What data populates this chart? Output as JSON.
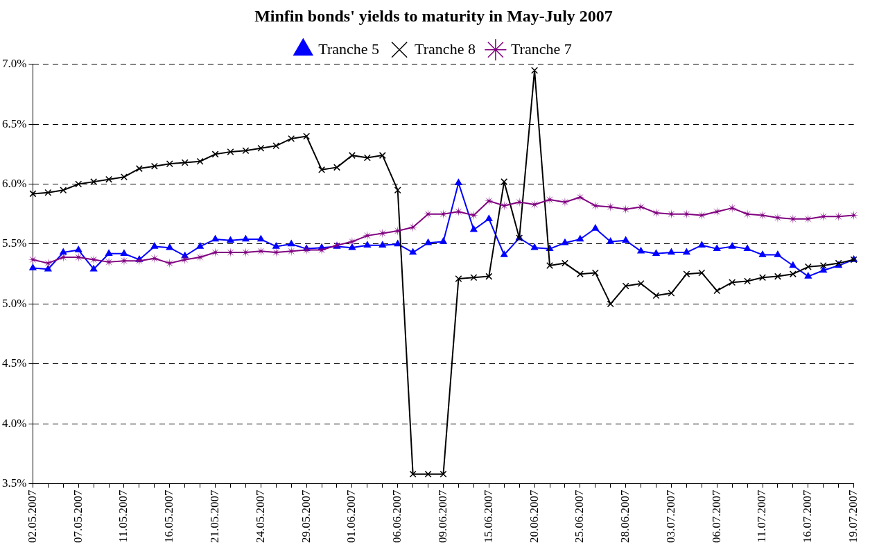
{
  "chart_data": {
    "type": "line",
    "title": "Minfin bonds' yields to maturity in May-July 2007",
    "categories": [
      "02.05.2007",
      null,
      null,
      "07.05.2007",
      null,
      null,
      "11.05.2007",
      null,
      null,
      "16.05.2007",
      null,
      null,
      "21.05.2007",
      null,
      null,
      "24.05.2007",
      null,
      null,
      "29.05.2007",
      null,
      null,
      "01.06.2007",
      null,
      null,
      "06.06.2007",
      null,
      null,
      "09.06.2007",
      null,
      null,
      "15.06.2007",
      null,
      null,
      "20.06.2007",
      null,
      null,
      "25.06.2007",
      null,
      null,
      "28.06.2007",
      null,
      null,
      "03.07.2007",
      null,
      null,
      "06.07.2007",
      null,
      null,
      "11.07.2007",
      null,
      null,
      "16.07.2007",
      null,
      null,
      "19.07.2007"
    ],
    "series": [
      {
        "name": "Tranche 5",
        "color": "#0000ff",
        "marker": "triangle",
        "values": [
          5.3,
          5.29,
          5.43,
          5.45,
          5.29,
          5.42,
          5.42,
          5.37,
          5.48,
          5.47,
          5.4,
          5.48,
          5.54,
          5.53,
          5.54,
          5.54,
          5.48,
          5.5,
          5.46,
          5.47,
          5.48,
          5.47,
          5.49,
          5.49,
          5.5,
          5.43,
          5.51,
          5.52,
          6.01,
          5.62,
          5.71,
          5.41,
          5.55,
          5.47,
          5.46,
          5.51,
          5.54,
          5.63,
          5.52,
          5.53,
          5.44,
          5.42,
          5.43,
          5.43,
          5.49,
          5.46,
          5.48,
          5.46,
          5.41,
          5.41,
          5.32,
          5.23,
          5.28,
          5.32,
          5.37
        ]
      },
      {
        "name": "Tranche 8",
        "color": "#000000",
        "marker": "cross",
        "values": [
          5.92,
          5.93,
          5.95,
          6.0,
          6.02,
          6.04,
          6.06,
          6.13,
          6.15,
          6.17,
          6.18,
          6.19,
          6.25,
          6.27,
          6.28,
          6.3,
          6.32,
          6.38,
          6.4,
          6.12,
          6.14,
          6.24,
          6.22,
          6.24,
          5.95,
          3.58,
          3.58,
          3.58,
          5.21,
          5.22,
          5.23,
          6.02,
          5.55,
          6.95,
          5.32,
          5.34,
          5.25,
          5.26,
          5.0,
          5.15,
          5.17,
          5.07,
          5.09,
          5.25,
          5.26,
          5.11,
          5.18,
          5.19,
          5.22,
          5.23,
          5.25,
          5.31,
          5.32,
          5.34,
          5.37
        ]
      },
      {
        "name": "Tranche 7",
        "color": "#800080",
        "marker": "star",
        "values": [
          5.37,
          5.34,
          5.39,
          5.39,
          5.37,
          5.35,
          5.36,
          5.36,
          5.38,
          5.34,
          5.37,
          5.39,
          5.43,
          5.43,
          5.43,
          5.44,
          5.43,
          5.44,
          5.45,
          5.45,
          5.49,
          5.52,
          5.57,
          5.59,
          5.61,
          5.64,
          5.75,
          5.75,
          5.77,
          5.74,
          5.86,
          5.82,
          5.85,
          5.83,
          5.87,
          5.85,
          5.89,
          5.82,
          5.81,
          5.79,
          5.81,
          5.76,
          5.75,
          5.75,
          5.74,
          5.77,
          5.8,
          5.75,
          5.74,
          5.72,
          5.71,
          5.71,
          5.73,
          5.73,
          5.74
        ]
      }
    ],
    "ylim": [
      3.5,
      7
    ],
    "yticks": [
      {
        "value": 3.5,
        "label": "3.5%"
      },
      {
        "value": 4,
        "label": "4.0%"
      },
      {
        "value": 4.5,
        "label": "4.5%"
      },
      {
        "value": 5,
        "label": "5.0%"
      },
      {
        "value": 5.5,
        "label": "5.5%"
      },
      {
        "value": 6,
        "label": "6.0%"
      },
      {
        "value": 6.5,
        "label": "6.5%"
      },
      {
        "value": 7,
        "label": "7.0%"
      }
    ],
    "grid": "y",
    "legend": "top",
    "line_style": "solid"
  }
}
